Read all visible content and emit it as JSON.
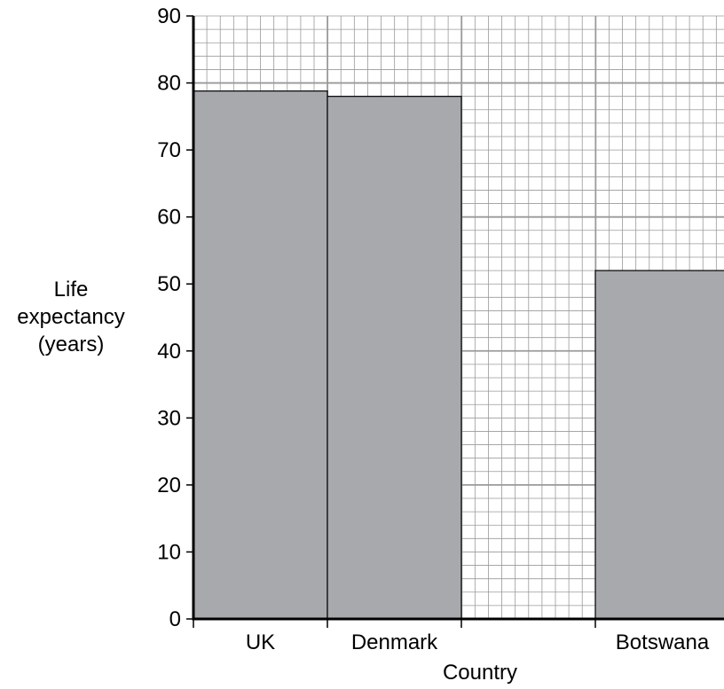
{
  "chart_data": {
    "type": "bar",
    "categories": [
      "UK",
      "Denmark",
      "",
      "Botswana"
    ],
    "values": [
      78.8,
      78.0,
      null,
      52.0
    ],
    "xlabel": "Country",
    "ylabel_lines": [
      "Life",
      "expectancy",
      "(years)"
    ],
    "ylim": [
      0,
      90
    ],
    "yticks": [
      0,
      10,
      20,
      30,
      40,
      50,
      60,
      70,
      80,
      90
    ],
    "grid": true,
    "bar_color": "#a7a9ac",
    "grid_color": "#9a9a9a"
  }
}
